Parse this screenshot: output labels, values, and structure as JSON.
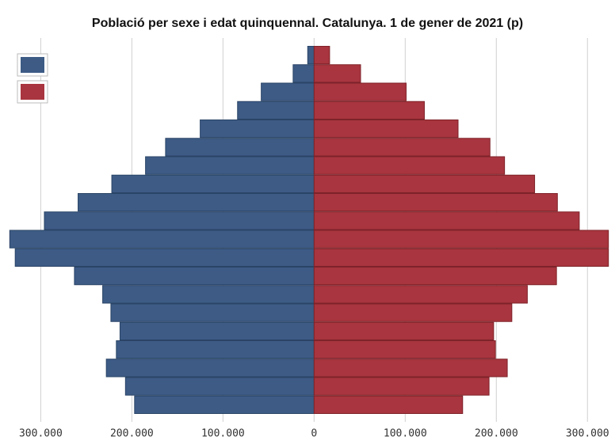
{
  "chart_data": {
    "type": "pyramid",
    "title": "Població per sexe i edat quinquennal. Catalunya. 1 de gener de 2021 (p)",
    "categories": [
      null,
      null,
      null,
      null,
      null,
      null,
      null,
      null,
      null,
      null,
      null,
      null,
      null,
      null,
      null,
      null,
      null,
      null,
      null,
      null
    ],
    "series": [
      {
        "color": "#3d5b85",
        "values": [
          -197000,
          -207000,
          -228000,
          -217000,
          -213000,
          -223000,
          -232000,
          -263000,
          -328000,
          -334000,
          -296000,
          -259000,
          -222000,
          -185000,
          -163000,
          -125000,
          -84000,
          -58000,
          -23000,
          -7000
        ]
      },
      {
        "color": "#a8353f",
        "values": [
          163000,
          192000,
          212000,
          199000,
          197000,
          217000,
          234000,
          266000,
          323000,
          323000,
          291000,
          267000,
          242000,
          209000,
          193000,
          158000,
          121000,
          101000,
          51000,
          17000
        ]
      }
    ],
    "xlim": [
      -336000,
      325000
    ],
    "xticks": [
      {
        "value": -300000,
        "label": "300.000"
      },
      {
        "value": -200000,
        "label": "200.000"
      },
      {
        "value": -100000,
        "label": "100.000"
      },
      0,
      {
        "value": 100000,
        "label": "100.000"
      },
      {
        "value": 200000,
        "label": "200.000"
      },
      {
        "value": 300000,
        "label": "300.000"
      }
    ],
    "grid": true
  }
}
